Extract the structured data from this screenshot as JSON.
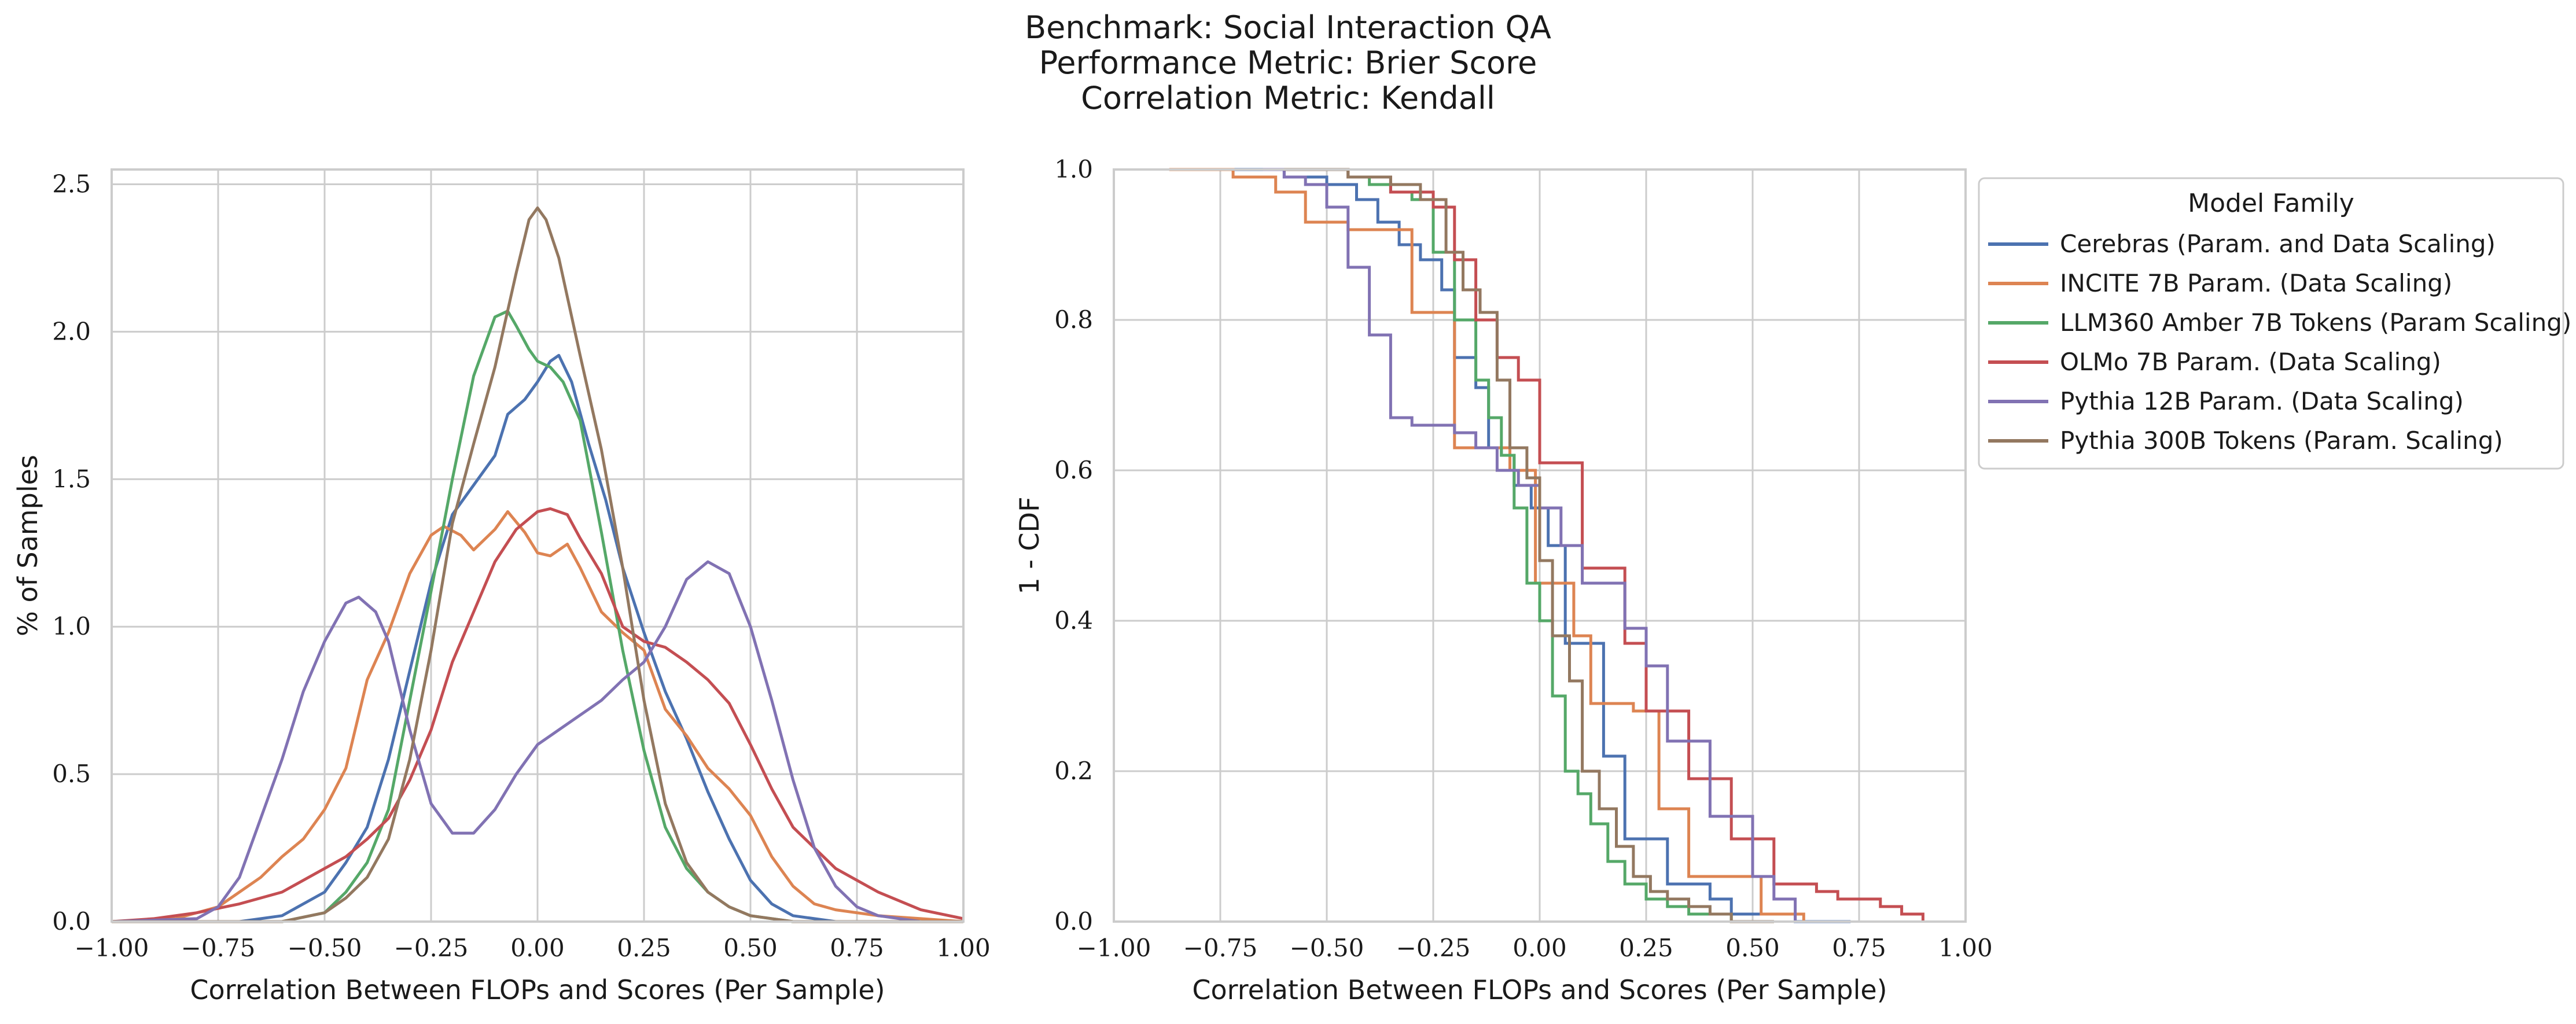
{
  "title_lines": [
    "Benchmark: Social Interaction QA",
    "Performance Metric: Brier Score",
    "Correlation Metric: Kendall"
  ],
  "colors": {
    "Cerebras": "#4c72b0",
    "INCITE": "#dd8452",
    "LLM360": "#55a868",
    "OLMo": "#c44e52",
    "Pythia12B": "#8172b3",
    "Pythia300B": "#937860"
  },
  "legend": {
    "title": "Model Family",
    "entries": [
      {
        "key": "Cerebras",
        "label": "Cerebras (Param. and Data Scaling)",
        "color": "#4c72b0"
      },
      {
        "key": "INCITE",
        "label": "INCITE 7B Param. (Data Scaling)",
        "color": "#dd8452"
      },
      {
        "key": "LLM360",
        "label": "LLM360 Amber 7B Tokens (Param Scaling)",
        "color": "#55a868"
      },
      {
        "key": "OLMo",
        "label": "OLMo 7B Param. (Data Scaling)",
        "color": "#c44e52"
      },
      {
        "key": "Pythia12B",
        "label": "Pythia 12B Param. (Data Scaling)",
        "color": "#8172b3"
      },
      {
        "key": "Pythia300B",
        "label": "Pythia 300B Tokens (Param. Scaling)",
        "color": "#937860"
      }
    ]
  },
  "chart_data": [
    {
      "type": "line",
      "subtype": "kde",
      "xlabel": "Correlation Between FLOPs and Scores (Per Sample)",
      "ylabel": "% of Samples",
      "xlim": [
        -1.0,
        1.0
      ],
      "ylim": [
        0,
        2.55
      ],
      "xticks": [
        "−1.00",
        "−0.75",
        "−0.50",
        "−0.25",
        "0.00",
        "0.25",
        "0.50",
        "0.75",
        "1.00"
      ],
      "xtick_values": [
        -1.0,
        -0.75,
        -0.5,
        -0.25,
        0.0,
        0.25,
        0.5,
        0.75,
        1.0
      ],
      "yticks": [
        "0.0",
        "0.5",
        "1.0",
        "1.5",
        "2.0",
        "2.5"
      ],
      "ytick_values": [
        0,
        0.5,
        1.0,
        1.5,
        2.0,
        2.5
      ],
      "grid": true,
      "series": [
        {
          "name": "Cerebras (Param. and Data Scaling)",
          "key": "Cerebras",
          "x": [
            -1.0,
            -0.7,
            -0.6,
            -0.5,
            -0.45,
            -0.4,
            -0.35,
            -0.3,
            -0.25,
            -0.2,
            -0.15,
            -0.1,
            -0.07,
            -0.03,
            0.0,
            0.03,
            0.05,
            0.08,
            0.12,
            0.16,
            0.2,
            0.25,
            0.3,
            0.35,
            0.4,
            0.45,
            0.5,
            0.55,
            0.6,
            0.7,
            1.0
          ],
          "y": [
            0,
            0,
            0.02,
            0.1,
            0.2,
            0.32,
            0.55,
            0.85,
            1.15,
            1.38,
            1.48,
            1.58,
            1.72,
            1.77,
            1.83,
            1.9,
            1.92,
            1.83,
            1.62,
            1.43,
            1.2,
            0.98,
            0.78,
            0.62,
            0.44,
            0.28,
            0.14,
            0.06,
            0.02,
            0,
            0
          ]
        },
        {
          "name": "INCITE 7B Param. (Data Scaling)",
          "key": "INCITE",
          "x": [
            -1.0,
            -0.85,
            -0.75,
            -0.65,
            -0.6,
            -0.55,
            -0.5,
            -0.45,
            -0.4,
            -0.35,
            -0.3,
            -0.25,
            -0.22,
            -0.18,
            -0.15,
            -0.1,
            -0.07,
            -0.03,
            0.0,
            0.03,
            0.07,
            0.1,
            0.15,
            0.2,
            0.25,
            0.3,
            0.35,
            0.4,
            0.45,
            0.5,
            0.55,
            0.6,
            0.65,
            0.7,
            0.8,
            0.9,
            1.0
          ],
          "y": [
            0,
            0.01,
            0.05,
            0.15,
            0.22,
            0.28,
            0.38,
            0.52,
            0.82,
            0.98,
            1.18,
            1.31,
            1.34,
            1.31,
            1.26,
            1.33,
            1.39,
            1.32,
            1.25,
            1.24,
            1.28,
            1.2,
            1.05,
            0.98,
            0.92,
            0.72,
            0.63,
            0.52,
            0.45,
            0.36,
            0.22,
            0.12,
            0.06,
            0.04,
            0.02,
            0.01,
            0
          ]
        },
        {
          "name": "LLM360 Amber 7B Tokens (Param Scaling)",
          "key": "LLM360",
          "x": [
            -1.0,
            -0.6,
            -0.5,
            -0.45,
            -0.4,
            -0.35,
            -0.3,
            -0.25,
            -0.2,
            -0.15,
            -0.1,
            -0.07,
            -0.05,
            -0.02,
            0.0,
            0.03,
            0.06,
            0.1,
            0.15,
            0.2,
            0.25,
            0.3,
            0.35,
            0.4,
            0.45,
            0.5,
            0.6,
            1.0
          ],
          "y": [
            0,
            0,
            0.03,
            0.1,
            0.2,
            0.38,
            0.75,
            1.12,
            1.5,
            1.85,
            2.05,
            2.07,
            2.02,
            1.94,
            1.9,
            1.88,
            1.83,
            1.7,
            1.32,
            0.92,
            0.58,
            0.32,
            0.18,
            0.1,
            0.05,
            0.02,
            0,
            0
          ]
        },
        {
          "name": "OLMo 7B Param. (Data Scaling)",
          "key": "OLMo",
          "x": [
            -1.0,
            -0.9,
            -0.8,
            -0.7,
            -0.6,
            -0.5,
            -0.45,
            -0.4,
            -0.35,
            -0.3,
            -0.25,
            -0.2,
            -0.15,
            -0.1,
            -0.05,
            0.0,
            0.03,
            0.07,
            0.1,
            0.15,
            0.2,
            0.25,
            0.3,
            0.35,
            0.4,
            0.45,
            0.5,
            0.55,
            0.6,
            0.7,
            0.8,
            0.9,
            1.0
          ],
          "y": [
            0,
            0.01,
            0.03,
            0.06,
            0.1,
            0.18,
            0.22,
            0.28,
            0.35,
            0.48,
            0.65,
            0.88,
            1.05,
            1.22,
            1.33,
            1.39,
            1.4,
            1.38,
            1.3,
            1.18,
            1.0,
            0.95,
            0.93,
            0.88,
            0.82,
            0.74,
            0.6,
            0.45,
            0.32,
            0.18,
            0.1,
            0.04,
            0.01
          ]
        },
        {
          "name": "Pythia 12B Param. (Data Scaling)",
          "key": "Pythia12B",
          "x": [
            -1.0,
            -0.8,
            -0.75,
            -0.7,
            -0.65,
            -0.6,
            -0.55,
            -0.5,
            -0.45,
            -0.42,
            -0.38,
            -0.35,
            -0.3,
            -0.25,
            -0.2,
            -0.15,
            -0.1,
            -0.05,
            0.0,
            0.05,
            0.1,
            0.15,
            0.2,
            0.25,
            0.3,
            0.35,
            0.4,
            0.45,
            0.5,
            0.55,
            0.6,
            0.65,
            0.7,
            0.75,
            0.8,
            0.9,
            1.0
          ],
          "y": [
            0,
            0.01,
            0.05,
            0.15,
            0.35,
            0.55,
            0.78,
            0.95,
            1.08,
            1.1,
            1.05,
            0.95,
            0.65,
            0.4,
            0.3,
            0.3,
            0.38,
            0.5,
            0.6,
            0.65,
            0.7,
            0.75,
            0.82,
            0.88,
            1.0,
            1.16,
            1.22,
            1.18,
            1.0,
            0.75,
            0.48,
            0.25,
            0.12,
            0.05,
            0.02,
            0.0,
            0
          ]
        },
        {
          "name": "Pythia 300B Tokens (Param. Scaling)",
          "key": "Pythia300B",
          "x": [
            -1.0,
            -0.6,
            -0.5,
            -0.45,
            -0.4,
            -0.35,
            -0.3,
            -0.25,
            -0.2,
            -0.15,
            -0.1,
            -0.05,
            -0.02,
            0.0,
            0.02,
            0.05,
            0.1,
            0.15,
            0.2,
            0.25,
            0.3,
            0.35,
            0.4,
            0.45,
            0.5,
            0.6,
            1.0
          ],
          "y": [
            0,
            0,
            0.03,
            0.08,
            0.15,
            0.28,
            0.55,
            0.92,
            1.35,
            1.62,
            1.88,
            2.2,
            2.38,
            2.42,
            2.38,
            2.25,
            1.92,
            1.6,
            1.2,
            0.75,
            0.4,
            0.2,
            0.1,
            0.05,
            0.02,
            0,
            0
          ]
        }
      ]
    },
    {
      "type": "line",
      "subtype": "step-ecdf",
      "xlabel": "Correlation Between FLOPs and Scores (Per Sample)",
      "ylabel": "1 - CDF",
      "xlim": [
        -1.0,
        1.0
      ],
      "ylim": [
        0,
        1.0
      ],
      "xticks": [
        "−1.00",
        "−0.75",
        "−0.50",
        "−0.25",
        "0.00",
        "0.25",
        "0.50",
        "0.75",
        "1.00"
      ],
      "xtick_values": [
        -1.0,
        -0.75,
        -0.5,
        -0.25,
        0.0,
        0.25,
        0.5,
        0.75,
        1.0
      ],
      "yticks": [
        "0.0",
        "0.2",
        "0.4",
        "0.6",
        "0.8",
        "1.0"
      ],
      "ytick_values": [
        0,
        0.2,
        0.4,
        0.6,
        0.8,
        1.0
      ],
      "grid": true,
      "legend_position": "outside right",
      "series": [
        {
          "name": "Cerebras (Param. and Data Scaling)",
          "key": "Cerebras",
          "x": [
            -0.73,
            -0.6,
            -0.5,
            -0.43,
            -0.38,
            -0.33,
            -0.28,
            -0.23,
            -0.2,
            -0.15,
            -0.12,
            -0.09,
            -0.06,
            -0.02,
            0.02,
            0.06,
            0.1,
            0.15,
            0.2,
            0.25,
            0.3,
            0.35,
            0.4,
            0.45,
            0.5,
            0.55,
            0.6,
            0.73
          ],
          "y": [
            1.0,
            0.99,
            0.98,
            0.96,
            0.93,
            0.9,
            0.88,
            0.84,
            0.75,
            0.71,
            0.63,
            0.62,
            0.58,
            0.55,
            0.5,
            0.37,
            0.37,
            0.22,
            0.11,
            0.11,
            0.05,
            0.05,
            0.03,
            0.01,
            0.01,
            0.01,
            0.0,
            0.0
          ]
        },
        {
          "name": "INCITE 7B Param. (Data Scaling)",
          "key": "INCITE",
          "x": [
            -0.87,
            -0.72,
            -0.62,
            -0.55,
            -0.45,
            -0.38,
            -0.3,
            -0.2,
            -0.12,
            -0.07,
            -0.01,
            0.04,
            0.08,
            0.12,
            0.18,
            0.22,
            0.28,
            0.3,
            0.35,
            0.4,
            0.46,
            0.52,
            0.58,
            0.62
          ],
          "y": [
            1.0,
            0.99,
            0.97,
            0.93,
            0.92,
            0.92,
            0.81,
            0.63,
            0.63,
            0.6,
            0.45,
            0.45,
            0.38,
            0.29,
            0.29,
            0.28,
            0.15,
            0.15,
            0.06,
            0.06,
            0.06,
            0.01,
            0.01,
            0.0
          ]
        },
        {
          "name": "LLM360 Amber 7B Tokens (Param Scaling)",
          "key": "LLM360",
          "x": [
            -0.55,
            -0.45,
            -0.4,
            -0.35,
            -0.3,
            -0.25,
            -0.2,
            -0.15,
            -0.12,
            -0.09,
            -0.06,
            -0.03,
            0.0,
            0.03,
            0.06,
            0.09,
            0.12,
            0.16,
            0.2,
            0.25,
            0.3,
            0.35,
            0.4,
            0.45,
            0.5,
            0.55
          ],
          "y": [
            1.0,
            0.99,
            0.98,
            0.97,
            0.96,
            0.89,
            0.8,
            0.72,
            0.67,
            0.62,
            0.55,
            0.45,
            0.4,
            0.3,
            0.2,
            0.17,
            0.13,
            0.08,
            0.05,
            0.03,
            0.02,
            0.01,
            0.01,
            0.0,
            0.0,
            0.0
          ]
        },
        {
          "name": "OLMo 7B Param. (Data Scaling)",
          "key": "OLMo",
          "x": [
            -0.6,
            -0.45,
            -0.35,
            -0.25,
            -0.2,
            -0.15,
            -0.1,
            -0.05,
            0.0,
            0.05,
            0.1,
            0.15,
            0.2,
            0.25,
            0.3,
            0.35,
            0.4,
            0.45,
            0.5,
            0.55,
            0.6,
            0.65,
            0.7,
            0.75,
            0.8,
            0.85,
            0.9
          ],
          "y": [
            1.0,
            0.99,
            0.97,
            0.95,
            0.88,
            0.8,
            0.75,
            0.72,
            0.61,
            0.61,
            0.47,
            0.47,
            0.37,
            0.28,
            0.28,
            0.19,
            0.19,
            0.11,
            0.11,
            0.05,
            0.05,
            0.04,
            0.03,
            0.03,
            0.02,
            0.01,
            0.0
          ]
        },
        {
          "name": "Pythia 12B Param. (Data Scaling)",
          "key": "Pythia12B",
          "x": [
            -0.65,
            -0.6,
            -0.55,
            -0.5,
            -0.45,
            -0.4,
            -0.35,
            -0.3,
            -0.25,
            -0.2,
            -0.15,
            -0.1,
            -0.05,
            0.0,
            0.05,
            0.1,
            0.15,
            0.2,
            0.25,
            0.3,
            0.35,
            0.4,
            0.45,
            0.5,
            0.55,
            0.6
          ],
          "y": [
            1.0,
            0.99,
            0.98,
            0.95,
            0.87,
            0.78,
            0.67,
            0.66,
            0.66,
            0.65,
            0.63,
            0.6,
            0.58,
            0.55,
            0.5,
            0.45,
            0.45,
            0.39,
            0.34,
            0.24,
            0.24,
            0.14,
            0.14,
            0.06,
            0.03,
            0.0
          ]
        },
        {
          "name": "Pythia 300B Tokens (Param. Scaling)",
          "key": "Pythia300B",
          "x": [
            -0.6,
            -0.45,
            -0.35,
            -0.28,
            -0.22,
            -0.18,
            -0.14,
            -0.1,
            -0.07,
            -0.03,
            0.0,
            0.03,
            0.07,
            0.1,
            0.14,
            0.18,
            0.22,
            0.26,
            0.3,
            0.35,
            0.4,
            0.45,
            0.5,
            0.55
          ],
          "y": [
            1.0,
            0.99,
            0.98,
            0.96,
            0.89,
            0.84,
            0.81,
            0.72,
            0.63,
            0.59,
            0.48,
            0.38,
            0.32,
            0.2,
            0.15,
            0.1,
            0.06,
            0.04,
            0.03,
            0.02,
            0.01,
            0.0,
            0.0,
            0.0
          ]
        }
      ]
    }
  ]
}
